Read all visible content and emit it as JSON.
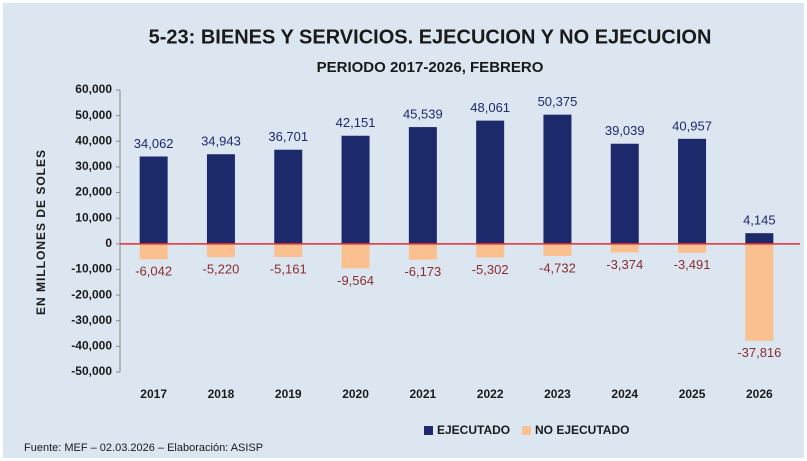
{
  "chart_data": {
    "type": "bar",
    "title": "5-23: BIENES Y SERVICIOS. EJECUCION Y NO EJECUCION",
    "subtitle": "PERIODO 2017-2026, FEBRERO",
    "y_label": "EN MILLONES DE SOLES",
    "source": "Fuente:  MEF – 02.03.2026 – Elaboración: ASISP",
    "categories": [
      "2017",
      "2018",
      "2019",
      "2020",
      "2021",
      "2022",
      "2023",
      "2024",
      "2025",
      "2026"
    ],
    "series": [
      {
        "name": "EJECUTADO",
        "color": "#1c2a6b",
        "values": [
          34062,
          34943,
          36701,
          42151,
          45539,
          48061,
          50375,
          39039,
          40957,
          4145
        ],
        "value_labels": [
          "34,062",
          "34,943",
          "36,701",
          "42,151",
          "45,539",
          "48,061",
          "50,375",
          "39,039",
          "40,957",
          "4,145"
        ]
      },
      {
        "name": "NO EJECUTADO",
        "color": "#fac090",
        "values": [
          -6042,
          -5220,
          -5161,
          -9564,
          -6173,
          -5302,
          -4732,
          -3374,
          -3491,
          -37816
        ],
        "value_labels": [
          "-6,042",
          "-5,220",
          "-5,161",
          "-9,564",
          "-6,173",
          "-5,302",
          "-4,732",
          "-3,374",
          "-3,491",
          "-37,816"
        ]
      }
    ],
    "ylim": [
      -50000,
      60000
    ],
    "yticks": [
      {
        "value": 60000,
        "label": "60,000"
      },
      {
        "value": 50000,
        "label": "50,000"
      },
      {
        "value": 40000,
        "label": "40,000"
      },
      {
        "value": 30000,
        "label": "30,000"
      },
      {
        "value": 20000,
        "label": "20,000"
      },
      {
        "value": 10000,
        "label": "10,000"
      },
      0,
      {
        "value": -10000,
        "label": "-10,000"
      },
      {
        "value": -20000,
        "label": "-20,000"
      },
      {
        "value": -30000,
        "label": "-30,000"
      },
      {
        "value": -40000,
        "label": "-40,000"
      },
      {
        "value": -50000,
        "label": "-50,000"
      }
    ],
    "grid": false,
    "legend": "bottom"
  }
}
